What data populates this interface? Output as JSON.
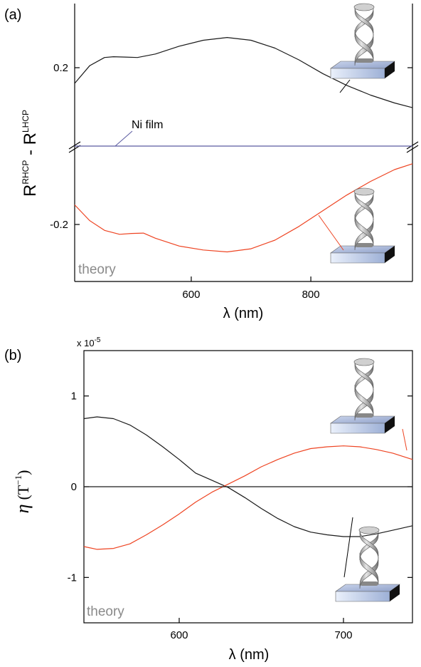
{
  "colors": {
    "black_curve": "#1a1a1a",
    "red_curve": "#ee4422",
    "ni_line": "#5a5aa0",
    "theory": "#8a8a8a"
  },
  "chart_data": [
    {
      "type": "line",
      "panel_label": "(a)",
      "xlabel": "λ (nm)",
      "ylabel": {
        "base1": "R",
        "sup1": "RHCP",
        "minus": " - ",
        "base2": "R",
        "sup2": "LHCP"
      },
      "xlim": [
        405,
        970
      ],
      "xticks": [
        {
          "value": 600,
          "label": "600"
        },
        {
          "value": 800,
          "label": "800"
        }
      ],
      "y_axis": "broken",
      "yticks": [
        {
          "value": 0.2,
          "label": "0.2"
        },
        {
          "value": -0.2,
          "label": "-0.2"
        }
      ],
      "annotation": {
        "text": "Ni film"
      },
      "note": "theory",
      "series": [
        {
          "color": "#1a1a1a",
          "x": [
            405,
            430,
            455,
            470,
            490,
            510,
            540,
            580,
            620,
            660,
            700,
            740,
            780,
            820,
            860,
            900,
            940,
            970
          ],
          "y": [
            0.16,
            0.205,
            0.226,
            0.228,
            0.227,
            0.226,
            0.235,
            0.255,
            0.27,
            0.277,
            0.27,
            0.25,
            0.22,
            0.185,
            0.155,
            0.13,
            0.11,
            0.098
          ]
        },
        {
          "color": "#5a5aa0",
          "x": [
            405,
            970
          ],
          "y": [
            0.0,
            0.0
          ]
        },
        {
          "color": "#ee4422",
          "x": [
            405,
            430,
            455,
            480,
            500,
            520,
            540,
            580,
            620,
            660,
            700,
            740,
            780,
            820,
            860,
            900,
            940,
            970
          ],
          "y": [
            -0.15,
            -0.19,
            -0.215,
            -0.225,
            -0.223,
            -0.222,
            -0.235,
            -0.255,
            -0.265,
            -0.27,
            -0.262,
            -0.24,
            -0.205,
            -0.165,
            -0.125,
            -0.09,
            -0.06,
            -0.045
          ]
        }
      ]
    },
    {
      "type": "line",
      "panel_label": "(b)",
      "xlabel": "λ (nm)",
      "ylabel": {
        "symbol": "η",
        "unit": "(T",
        "sup": "−1",
        "close": ")"
      },
      "y_multiplier": {
        "text": "x 10",
        "sup": "-5"
      },
      "xlim": [
        542,
        742
      ],
      "ylim": [
        -1.5,
        1.5
      ],
      "xticks": [
        {
          "value": 600,
          "label": "600"
        },
        {
          "value": 700,
          "label": "700"
        }
      ],
      "yticks": [
        {
          "value": 1,
          "label": "1"
        },
        {
          "value": 0,
          "label": "0"
        },
        {
          "value": -1,
          "label": "-1"
        }
      ],
      "note": "theory",
      "series": [
        {
          "color": "#1a1a1a",
          "x": [
            542,
            550,
            560,
            570,
            580,
            590,
            600,
            610,
            620,
            630,
            640,
            650,
            660,
            670,
            680,
            690,
            700,
            710,
            720,
            730,
            742
          ],
          "y": [
            0.75,
            0.77,
            0.75,
            0.68,
            0.57,
            0.44,
            0.3,
            0.15,
            0.07,
            -0.01,
            -0.12,
            -0.24,
            -0.35,
            -0.44,
            -0.5,
            -0.53,
            -0.55,
            -0.55,
            -0.52,
            -0.48,
            -0.43
          ]
        },
        {
          "color": "#ee4422",
          "x": [
            542,
            550,
            560,
            570,
            580,
            590,
            600,
            610,
            620,
            630,
            640,
            650,
            660,
            670,
            680,
            690,
            700,
            710,
            720,
            730,
            742
          ],
          "y": [
            -0.66,
            -0.69,
            -0.68,
            -0.63,
            -0.53,
            -0.42,
            -0.3,
            -0.17,
            -0.06,
            0.03,
            0.12,
            0.22,
            0.3,
            0.37,
            0.42,
            0.44,
            0.45,
            0.44,
            0.41,
            0.37,
            0.3
          ]
        },
        {
          "color": "#1a1a1a",
          "x": [
            542,
            742
          ],
          "y": [
            0,
            0
          ]
        }
      ]
    }
  ]
}
